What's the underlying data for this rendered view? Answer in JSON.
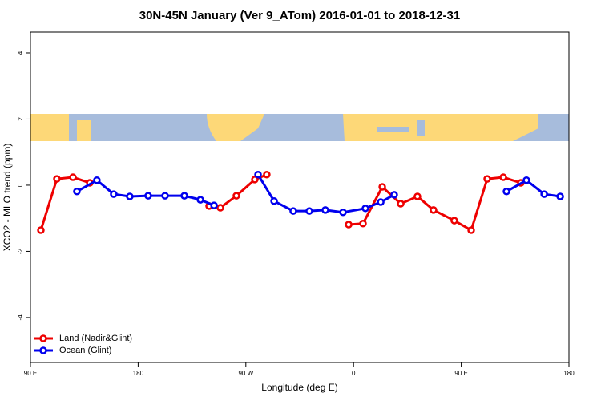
{
  "chart_data": {
    "type": "line",
    "title": "30N-45N January (Ver 9_ATom)   2016-01-01 to 2018-12-31",
    "x_label": "Longitude (deg E)",
    "y_label": "XCO2 - MLO trend (ppm)",
    "xlim": [
      90,
      540
    ],
    "xticks": [
      {
        "value": 90,
        "label": "90 E"
      },
      180,
      {
        "value": 270,
        "label": "90 W"
      },
      {
        "value": 360,
        "label": "0"
      },
      {
        "value": 450,
        "label": "90 E"
      },
      {
        "value": 540,
        "label": "180"
      }
    ],
    "ylim": [
      -5.36,
      4.63
    ],
    "yticks": [
      -4,
      -2,
      0,
      2,
      4
    ],
    "legend": "bottom-left",
    "series": [
      {
        "name": "Land (Nadir&Glint)",
        "color": "#ee0000",
        "x": [
          98.7,
          112.1,
          125.5,
          139.6,
          null,
          239.3,
          248.7,
          262.1,
          277.5,
          287.5,
          null,
          355.9,
          367.9,
          384.0,
          399.4,
          413.4,
          426.8,
          444.2,
          458.3,
          471.7,
          485.1,
          499.8
        ],
        "values": [
          -1.36,
          0.19,
          0.24,
          0.07,
          null,
          -0.63,
          -0.68,
          -0.32,
          0.17,
          0.32,
          null,
          -1.19,
          -1.16,
          -0.05,
          -0.56,
          -0.34,
          -0.75,
          -1.07,
          -1.36,
          0.19,
          0.24,
          0.07
        ]
      },
      {
        "name": "Ocean (Glint)",
        "color": "#0000ee",
        "x": [
          128.8,
          145.5,
          159.6,
          173.0,
          188.4,
          202.5,
          218.6,
          232.0,
          243.4,
          null,
          280.2,
          293.6,
          309.6,
          323.0,
          336.4,
          351.2,
          369.9,
          382.7,
          394.0,
          null,
          487.8,
          504.5,
          519.3,
          532.7
        ],
        "values": [
          -0.19,
          0.15,
          -0.27,
          -0.34,
          -0.32,
          -0.32,
          -0.32,
          -0.44,
          -0.61,
          null,
          0.32,
          -0.48,
          -0.78,
          -0.78,
          -0.75,
          -0.82,
          -0.7,
          -0.51,
          -0.29,
          null,
          -0.19,
          0.15,
          -0.27,
          -0.34
        ]
      }
    ]
  }
}
